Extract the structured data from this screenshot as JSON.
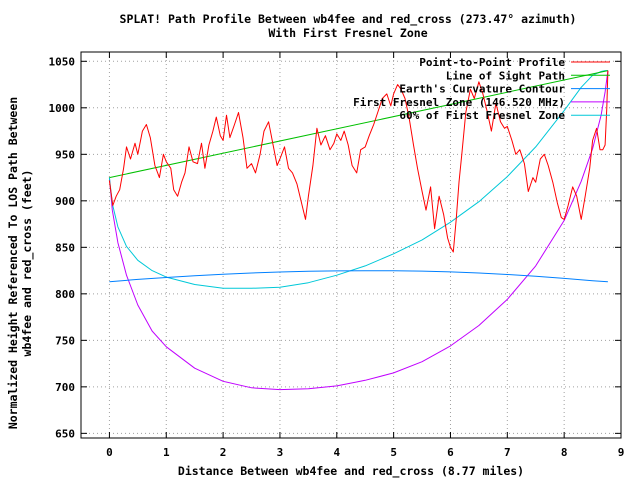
{
  "chart_data": {
    "type": "line",
    "title_line1": "SPLAT! Path Profile Between wb4fee and red_cross (273.47° azimuth)",
    "title_line2": "With First Fresnel Zone",
    "xlabel": "Distance Between wb4fee and red_cross (8.77 miles)",
    "ylabel_line1": "Normalized Height Referenced To LOS Path Between",
    "ylabel_line2": "wb4fee and red_cross (feet)",
    "xlim": [
      -0.5,
      9
    ],
    "ylim": [
      645,
      1060
    ],
    "xticks": [
      0,
      1,
      2,
      3,
      4,
      5,
      6,
      7,
      8,
      9
    ],
    "yticks": [
      650,
      700,
      750,
      800,
      850,
      900,
      950,
      1000,
      1050
    ],
    "grid": true,
    "legend_position": "top-right",
    "series": [
      {
        "name": "Point-to-Point Profile",
        "color": "#ff0000",
        "x": [
          0.0,
          0.06,
          0.12,
          0.18,
          0.25,
          0.3,
          0.37,
          0.45,
          0.5,
          0.58,
          0.65,
          0.72,
          0.8,
          0.88,
          0.95,
          1.0,
          1.08,
          1.13,
          1.2,
          1.27,
          1.33,
          1.4,
          1.47,
          1.55,
          1.62,
          1.68,
          1.75,
          1.82,
          1.88,
          1.95,
          2.0,
          2.06,
          2.12,
          2.2,
          2.27,
          2.35,
          2.42,
          2.5,
          2.57,
          2.65,
          2.72,
          2.8,
          2.88,
          2.95,
          3.0,
          3.08,
          3.15,
          3.22,
          3.3,
          3.37,
          3.45,
          3.5,
          3.58,
          3.65,
          3.72,
          3.8,
          3.88,
          3.95,
          4.0,
          4.07,
          4.13,
          4.2,
          4.27,
          4.35,
          4.42,
          4.5,
          4.57,
          4.65,
          4.72,
          4.8,
          4.88,
          4.95,
          5.0,
          5.07,
          5.13,
          5.2,
          5.27,
          5.35,
          5.42,
          5.5,
          5.57,
          5.65,
          5.72,
          5.8,
          5.88,
          5.95,
          6.0,
          6.05,
          6.1,
          6.15,
          6.2,
          6.27,
          6.35,
          6.42,
          6.5,
          6.57,
          6.65,
          6.72,
          6.8,
          6.88,
          6.95,
          7.0,
          7.08,
          7.15,
          7.22,
          7.3,
          7.37,
          7.45,
          7.5,
          7.58,
          7.65,
          7.72,
          7.8,
          7.88,
          7.95,
          8.0,
          8.07,
          8.15,
          8.22,
          8.3,
          8.37,
          8.45,
          8.5,
          8.57,
          8.63,
          8.68,
          8.72,
          8.75,
          8.77
        ],
        "y": [
          922,
          895,
          905,
          912,
          935,
          958,
          945,
          962,
          950,
          975,
          982,
          968,
          938,
          925,
          950,
          942,
          935,
          912,
          905,
          920,
          930,
          958,
          942,
          940,
          962,
          935,
          960,
          975,
          990,
          970,
          965,
          992,
          968,
          982,
          995,
          968,
          935,
          940,
          930,
          950,
          975,
          985,
          960,
          938,
          945,
          958,
          935,
          930,
          918,
          900,
          880,
          905,
          938,
          978,
          960,
          970,
          955,
          962,
          972,
          965,
          975,
          960,
          938,
          930,
          955,
          958,
          970,
          982,
          995,
          1010,
          1015,
          1002,
          1015,
          1025,
          1020,
          1010,
          990,
          960,
          935,
          910,
          890,
          915,
          870,
          905,
          885,
          860,
          850,
          845,
          880,
          920,
          950,
          995,
          1020,
          1010,
          1028,
          1015,
          995,
          975,
          1005,
          985,
          978,
          980,
          965,
          950,
          955,
          940,
          910,
          925,
          920,
          945,
          950,
          938,
          920,
          898,
          882,
          880,
          895,
          915,
          905,
          880,
          905,
          935,
          965,
          978,
          955,
          955,
          960,
          1000,
          1040
        ]
      },
      {
        "name": "Line of Sight Path",
        "color": "#00c000",
        "x": [
          0,
          8.77
        ],
        "y": [
          925,
          1040
        ]
      },
      {
        "name": "Earth's Curvature Contour",
        "color": "#0080ff",
        "x": [
          0,
          0.5,
          1,
          1.5,
          2,
          2.5,
          3,
          3.5,
          4,
          4.5,
          5,
          5.5,
          6,
          6.5,
          7,
          7.5,
          8,
          8.5,
          8.77
        ],
        "y": [
          813,
          815.5,
          817.6,
          819.4,
          821,
          822.4,
          823.5,
          824.2,
          824.7,
          824.9,
          824.8,
          824.4,
          823.6,
          822.4,
          820.8,
          818.9,
          816.6,
          814.1,
          813
        ]
      },
      {
        "name": "First Fresnel Zone (146.520 MHz)",
        "color": "#c000ff",
        "x": [
          0,
          0.05,
          0.15,
          0.3,
          0.5,
          0.75,
          1,
          1.5,
          2,
          2.5,
          3,
          3.5,
          4,
          4.5,
          5,
          5.5,
          6,
          6.5,
          7,
          7.5,
          8,
          8.3,
          8.5,
          8.65,
          8.72,
          8.77
        ],
        "y": [
          925,
          890,
          855,
          820,
          788,
          760,
          743,
          720,
          706,
          699,
          697,
          698,
          701,
          707,
          715,
          727,
          744,
          766,
          794,
          830,
          879,
          921,
          956,
          992,
          1017,
          1040
        ]
      },
      {
        "name": "60% of First Fresnel Zone",
        "color": "#00c8d8",
        "x": [
          0,
          0.05,
          0.15,
          0.3,
          0.5,
          0.75,
          1,
          1.5,
          2,
          2.5,
          3,
          3.5,
          4,
          4.5,
          5,
          5.5,
          6,
          6.5,
          7,
          7.5,
          8,
          8.3,
          8.5,
          8.65,
          8.72,
          8.77
        ],
        "y": [
          925,
          897,
          872,
          851,
          836,
          825,
          818,
          810,
          806,
          806,
          807,
          812,
          820,
          830,
          843,
          858,
          877,
          899,
          926,
          958,
          997,
          1022,
          1035,
          1039,
          1040,
          1040
        ]
      }
    ]
  }
}
